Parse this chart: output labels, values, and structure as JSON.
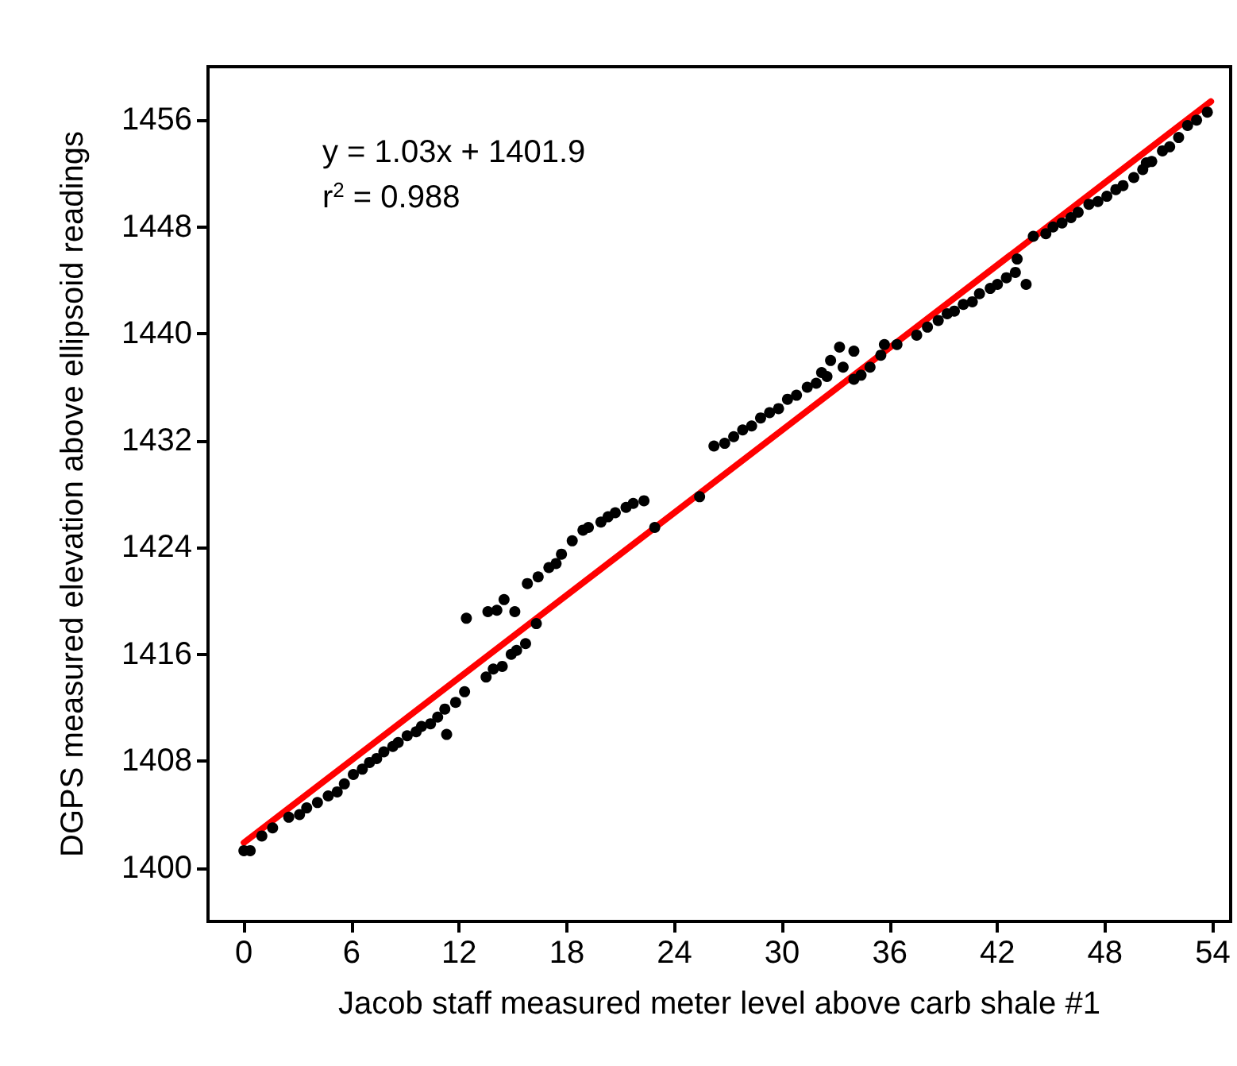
{
  "chart_data": {
    "type": "scatter",
    "xlabel": "Jacob staff measured meter level above carb shale #1",
    "ylabel": "DGPS measured elevation above ellipsoid readings",
    "annotations": [
      "y = 1.03x + 1401.9",
      "r$^{2}$ = 0.988"
    ],
    "xlim": [
      -2,
      55
    ],
    "xticks": [
      0,
      6,
      12,
      18,
      24,
      30,
      36,
      42,
      48,
      54
    ],
    "ylim": [
      1396,
      1460
    ],
    "yticks": [
      1400,
      1408,
      1416,
      1424,
      1432,
      1440,
      1448,
      1456
    ],
    "grid": false,
    "marker": "circle",
    "series": [
      {
        "color": "#000000",
        "x": [
          0,
          0.35,
          1,
          1.6,
          2.5,
          3.1,
          3.5,
          4.1,
          4.7,
          5.2,
          5.6,
          6.1,
          6.6,
          7.0,
          7.4,
          7.8,
          8.3,
          8.6,
          9.1,
          9.6,
          9.9,
          10.4,
          10.8,
          11.3,
          11.2,
          11.8,
          12.3,
          12.4,
          13.5,
          13.9,
          14.4,
          14.9,
          15.2,
          15.7,
          16.3,
          13.6,
          14.1,
          14.5,
          15.1,
          15.8,
          16.4,
          17.0,
          17.4,
          17.7,
          18.3,
          18.9,
          19.2,
          19.9,
          20.3,
          20.7,
          21.3,
          21.7,
          22.3,
          22.9,
          25.4,
          26.2,
          26.8,
          27.3,
          27.8,
          28.3,
          28.8,
          29.3,
          29.8,
          30.3,
          30.8,
          31.4,
          31.9,
          32.2,
          32.5,
          33.2,
          32.7,
          33.4,
          34.0,
          34.0,
          34.4,
          34.9,
          35.5,
          35.7,
          36.4,
          37.5,
          38.1,
          38.7,
          39.2,
          39.6,
          40.1,
          40.6,
          41.0,
          41.6,
          42.0,
          42.5,
          43.0,
          43.6,
          43.1,
          44.0,
          44.7,
          45.1,
          45.6,
          46.1,
          46.5,
          47.1,
          47.6,
          48.1,
          48.6,
          49.0,
          49.6,
          50.1,
          50.3,
          50.6,
          51.2,
          51.6,
          52.1,
          52.6,
          53.1,
          53.7
        ],
        "values": [
          1401.3,
          1401.3,
          1402.4,
          1403,
          1403.8,
          1404,
          1404.5,
          1404.9,
          1405.4,
          1405.7,
          1406.3,
          1407,
          1407.4,
          1407.9,
          1408.2,
          1408.7,
          1409.1,
          1409.4,
          1409.9,
          1410.2,
          1410.6,
          1410.8,
          1411.3,
          1410.0,
          1411.9,
          1412.4,
          1413.2,
          1418.7,
          1414.3,
          1414.9,
          1415.1,
          1416,
          1416.3,
          1416.8,
          1418.3,
          1419.2,
          1419.3,
          1420.1,
          1419.2,
          1421.3,
          1421.8,
          1422.5,
          1422.8,
          1423.5,
          1424.5,
          1425.3,
          1425.5,
          1425.9,
          1426.3,
          1426.6,
          1427,
          1427.3,
          1427.5,
          1425.5,
          1427.8,
          1431.6,
          1431.8,
          1432.3,
          1432.8,
          1433.1,
          1433.7,
          1434.1,
          1434.4,
          1435.1,
          1435.4,
          1436,
          1436.3,
          1437.1,
          1436.8,
          1439,
          1438,
          1437.5,
          1438.7,
          1436.6,
          1436.9,
          1437.5,
          1438.4,
          1439.2,
          1439.2,
          1439.9,
          1440.5,
          1441,
          1441.5,
          1441.7,
          1442.2,
          1442.4,
          1443,
          1443.4,
          1443.7,
          1444.2,
          1444.6,
          1443.7,
          1445.6,
          1447.3,
          1447.5,
          1448,
          1448.3,
          1448.7,
          1449.1,
          1449.7,
          1449.9,
          1450.3,
          1450.8,
          1451.1,
          1451.7,
          1452.3,
          1452.8,
          1452.9,
          1453.7,
          1454,
          1454.7,
          1455.6,
          1456,
          1456.6
        ]
      },
      {
        "type": "line",
        "color": "#ff0000",
        "marker": "none",
        "line_style": "solid",
        "x": [
          0,
          53.9
        ],
        "values": [
          1401.9,
          1457.4
        ]
      }
    ]
  }
}
